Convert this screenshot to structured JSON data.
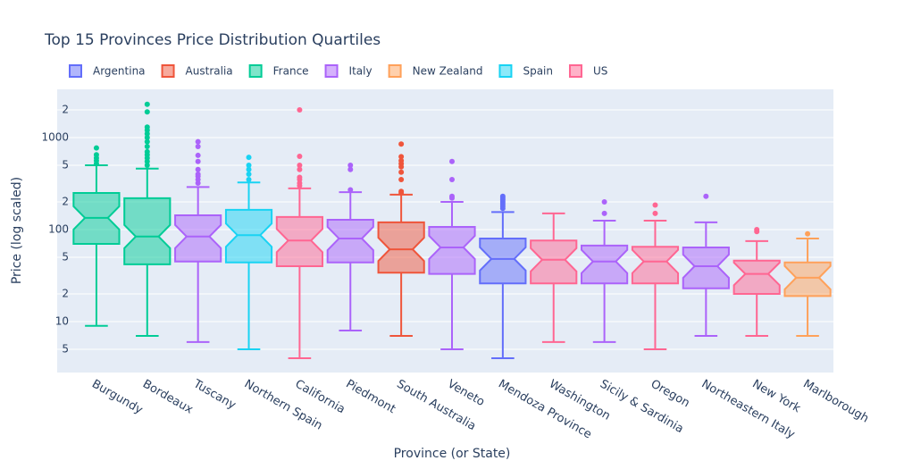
{
  "chart_data": {
    "type": "box",
    "title": "Top 15 Provinces Price Distribution Quartiles",
    "xlabel": "Province (or State)",
    "ylabel": "Price (log scaled)",
    "yscale": "log",
    "notched": true,
    "grid": true,
    "legend_position": "top",
    "categories": [
      "Burgundy",
      "Bordeaux",
      "Tuscany",
      "Northern Spain",
      "California",
      "Piedmont",
      "South Australia",
      "Veneto",
      "Mendoza Province",
      "Washington",
      "Sicily & Sardinia",
      "Oregon",
      "Northeastern Italy",
      "New York",
      "Marlborough"
    ],
    "ylim": [
      2.8,
      3340
    ],
    "yticks": [
      5,
      10,
      {
        "value": 20,
        "label": "2"
      },
      {
        "value": 50,
        "label": "5"
      },
      100,
      {
        "value": 200,
        "label": "2"
      },
      {
        "value": 500,
        "label": "5"
      },
      1000,
      {
        "value": 2000,
        "label": "2"
      }
    ],
    "series": [
      {
        "name": "Argentina",
        "color": "#636efa",
        "boxes": [
          {
            "x": "Mendoza Province",
            "lower": 4,
            "q1": 26,
            "median": 48,
            "q3": 80,
            "upper": 155,
            "outliers": [
              230,
              220,
              210,
              200,
              190,
              180,
              170
            ]
          }
        ]
      },
      {
        "name": "Australia",
        "color": "#ef553b",
        "boxes": [
          {
            "x": "South Australia",
            "lower": 7,
            "q1": 34,
            "median": 61,
            "q3": 120,
            "upper": 240,
            "outliers": [
              850,
              620,
              560,
              520,
              480,
              420,
              350,
              260,
              250
            ]
          }
        ]
      },
      {
        "name": "France",
        "color": "#00cc96",
        "boxes": [
          {
            "x": "Burgundy",
            "lower": 9,
            "q1": 70,
            "median": 134,
            "q3": 250,
            "upper": 500,
            "outliers": [
              770,
              650,
              600,
              560,
              520
            ]
          },
          {
            "x": "Bordeaux",
            "lower": 7,
            "q1": 42,
            "median": 84,
            "q3": 219,
            "upper": 460,
            "outliers": [
              2300,
              1900,
              1300,
              1200,
              1100,
              1000,
              900,
              800,
              700,
              650,
              600,
              550,
              500
            ]
          }
        ]
      },
      {
        "name": "Italy",
        "color": "#ab63fa",
        "boxes": [
          {
            "x": "Tuscany",
            "lower": 6,
            "q1": 45,
            "median": 84,
            "q3": 143,
            "upper": 290,
            "outliers": [
              900,
              800,
              640,
              550,
              450,
              400,
              380,
              350,
              320
            ]
          },
          {
            "x": "Piedmont",
            "lower": 8,
            "q1": 44,
            "median": 80,
            "q3": 128,
            "upper": 255,
            "outliers": [
              500,
              450,
              270
            ]
          },
          {
            "x": "Veneto",
            "lower": 5,
            "q1": 33,
            "median": 64,
            "q3": 107,
            "upper": 200,
            "outliers": [
              550,
              350,
              230,
              220
            ]
          },
          {
            "x": "Sicily & Sardinia",
            "lower": 6,
            "q1": 26,
            "median": 45,
            "q3": 67,
            "upper": 125,
            "outliers": [
              200,
              150
            ]
          },
          {
            "x": "Northeastern Italy",
            "lower": 7,
            "q1": 23,
            "median": 40,
            "q3": 64,
            "upper": 120,
            "outliers": [
              230
            ]
          }
        ]
      },
      {
        "name": "New Zealand",
        "color": "#ffa15a",
        "boxes": [
          {
            "x": "Marlborough",
            "lower": 7,
            "q1": 19,
            "median": 30,
            "q3": 44,
            "upper": 80,
            "outliers": [
              90
            ]
          }
        ]
      },
      {
        "name": "Spain",
        "color": "#19d3f3",
        "boxes": [
          {
            "x": "Northern Spain",
            "lower": 5,
            "q1": 44,
            "median": 87,
            "q3": 164,
            "upper": 325,
            "outliers": [
              610,
              500,
              450,
              400,
              350
            ]
          }
        ]
      },
      {
        "name": "US",
        "color": "#ff6692",
        "boxes": [
          {
            "x": "California",
            "lower": 4,
            "q1": 40,
            "median": 76,
            "q3": 137,
            "upper": 280,
            "outliers": [
              2000,
              625,
              500,
              450,
              370,
              350,
              320,
              300
            ]
          },
          {
            "x": "Washington",
            "lower": 6,
            "q1": 26,
            "median": 47,
            "q3": 76,
            "upper": 150,
            "outliers": []
          },
          {
            "x": "Oregon",
            "lower": 5,
            "q1": 26,
            "median": 45,
            "q3": 65,
            "upper": 125,
            "outliers": [
              185,
              150
            ]
          },
          {
            "x": "New York",
            "lower": 7,
            "q1": 20,
            "median": 33,
            "q3": 46,
            "upper": 75,
            "outliers": [
              100,
              95
            ]
          }
        ]
      }
    ]
  }
}
